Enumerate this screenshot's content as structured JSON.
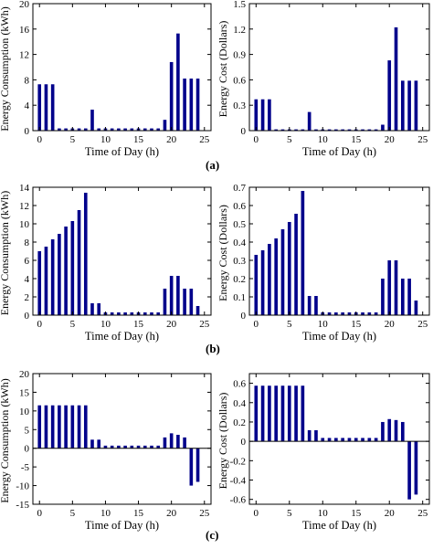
{
  "chart_data": [
    {
      "type": "bar",
      "panel": "a",
      "ylabel": "Energy Consumption (kWh)",
      "xlabel": "Time of Day (h)",
      "ylim": [
        0,
        20
      ],
      "xlim": [
        -1,
        26
      ],
      "yticks": [
        0,
        4,
        8,
        12,
        16,
        20
      ],
      "ytick_labels": [
        "0",
        "4",
        "8",
        "12",
        "16",
        "20"
      ],
      "xticks": [
        0,
        5,
        10,
        15,
        20,
        25
      ],
      "xtick_labels": [
        "0",
        "5",
        "10",
        "15",
        "20",
        "25"
      ],
      "x": [
        0,
        1,
        2,
        3,
        4,
        5,
        6,
        7,
        8,
        9,
        10,
        11,
        12,
        13,
        14,
        15,
        16,
        17,
        18,
        19,
        20,
        21,
        22,
        23,
        24
      ],
      "values": [
        7.3,
        7.3,
        7.3,
        0.35,
        0.35,
        0.35,
        0.35,
        0.35,
        3.3,
        0.35,
        0.35,
        0.35,
        0.35,
        0.35,
        0.35,
        0.35,
        0.35,
        0.35,
        0.35,
        1.7,
        10.8,
        15.3,
        8.2,
        8.2,
        8.2
      ],
      "color": "#00008B"
    },
    {
      "type": "bar",
      "panel": "a",
      "ylabel": "Energy Cost (Dollars)",
      "xlabel": "Time of Day (h)",
      "ylim": [
        0,
        1.5
      ],
      "xlim": [
        -1,
        26
      ],
      "yticks": [
        0,
        0.3,
        0.6,
        0.9,
        1.2,
        1.5
      ],
      "ytick_labels": [
        "0",
        "0.3",
        "0.6",
        "0.9",
        "1.2",
        "1.5"
      ],
      "xticks": [
        0,
        5,
        10,
        15,
        20,
        25
      ],
      "xtick_labels": [
        "0",
        "5",
        "10",
        "15",
        "20",
        "25"
      ],
      "x": [
        0,
        1,
        2,
        3,
        4,
        5,
        6,
        7,
        8,
        9,
        10,
        11,
        12,
        13,
        14,
        15,
        16,
        17,
        18,
        19,
        20,
        21,
        22,
        23,
        24
      ],
      "values": [
        0.37,
        0.37,
        0.37,
        0.015,
        0.015,
        0.015,
        0.015,
        0.015,
        0.22,
        0.015,
        0.015,
        0.015,
        0.015,
        0.015,
        0.015,
        0.015,
        0.015,
        0.015,
        0.015,
        0.07,
        0.83,
        1.22,
        0.59,
        0.59,
        0.59
      ],
      "color": "#00008B"
    },
    {
      "type": "bar",
      "panel": "b",
      "ylabel": "Energy Consumption (kWh)",
      "xlabel": "Time of Day (h)",
      "ylim": [
        0,
        14
      ],
      "xlim": [
        -1,
        26
      ],
      "yticks": [
        0,
        2,
        4,
        6,
        8,
        10,
        12,
        14
      ],
      "ytick_labels": [
        "0",
        "2",
        "4",
        "6",
        "8",
        "10",
        "12",
        "14"
      ],
      "xticks": [
        0,
        5,
        10,
        15,
        20,
        25
      ],
      "xtick_labels": [
        "0",
        "5",
        "10",
        "15",
        "20",
        "25"
      ],
      "x": [
        0,
        1,
        2,
        3,
        4,
        5,
        6,
        7,
        8,
        9,
        10,
        11,
        12,
        13,
        14,
        15,
        16,
        17,
        18,
        19,
        20,
        21,
        22,
        23,
        24
      ],
      "values": [
        7.0,
        7.5,
        8.3,
        8.9,
        9.7,
        10.3,
        11.5,
        13.4,
        1.3,
        1.3,
        0.3,
        0.3,
        0.3,
        0.3,
        0.3,
        0.3,
        0.3,
        0.3,
        0.3,
        2.9,
        4.3,
        4.3,
        2.9,
        2.9,
        1.0
      ],
      "color": "#00008B"
    },
    {
      "type": "bar",
      "panel": "b",
      "ylabel": "Energy Cost (Dollars)",
      "xlabel": "Time of Day (h)",
      "ylim": [
        0,
        0.7
      ],
      "xlim": [
        -1,
        26
      ],
      "yticks": [
        0,
        0.1,
        0.2,
        0.3,
        0.4,
        0.5,
        0.6,
        0.7
      ],
      "ytick_labels": [
        "0",
        "0.1",
        "0.2",
        "0.3",
        "0.4",
        "0.5",
        "0.6",
        "0.7"
      ],
      "xticks": [
        0,
        5,
        10,
        15,
        20,
        25
      ],
      "xtick_labels": [
        "0",
        "5",
        "10",
        "15",
        "20",
        "25"
      ],
      "x": [
        0,
        1,
        2,
        3,
        4,
        5,
        6,
        7,
        8,
        9,
        10,
        11,
        12,
        13,
        14,
        15,
        16,
        17,
        18,
        19,
        20,
        21,
        22,
        23,
        24
      ],
      "values": [
        0.33,
        0.355,
        0.39,
        0.42,
        0.47,
        0.51,
        0.555,
        0.68,
        0.105,
        0.105,
        0.015,
        0.015,
        0.015,
        0.015,
        0.015,
        0.015,
        0.015,
        0.015,
        0.015,
        0.2,
        0.3,
        0.3,
        0.2,
        0.2,
        0.08
      ],
      "color": "#00008B"
    },
    {
      "type": "bar",
      "panel": "c",
      "ylabel": "Energy Consumption (kWh)",
      "xlabel": "Time of Day (h)",
      "ylim": [
        -15,
        20
      ],
      "xlim": [
        -1,
        26
      ],
      "yticks": [
        -15,
        -10,
        -5,
        0,
        5,
        10,
        15,
        20
      ],
      "ytick_labels": [
        "-15",
        "-10",
        "-5",
        "0",
        "5",
        "10",
        "15",
        "20"
      ],
      "xticks": [
        0,
        5,
        10,
        15,
        20,
        25
      ],
      "xtick_labels": [
        "0",
        "5",
        "10",
        "15",
        "20",
        "25"
      ],
      "x": [
        0,
        1,
        2,
        3,
        4,
        5,
        6,
        7,
        8,
        9,
        10,
        11,
        12,
        13,
        14,
        15,
        16,
        17,
        18,
        19,
        20,
        21,
        22,
        23,
        24
      ],
      "values": [
        11.5,
        11.5,
        11.5,
        11.5,
        11.5,
        11.5,
        11.5,
        11.5,
        2.3,
        2.3,
        0.7,
        0.7,
        0.7,
        0.7,
        0.7,
        0.7,
        0.7,
        0.7,
        0.7,
        2.9,
        4.0,
        3.6,
        2.9,
        -10.0,
        -9.0
      ],
      "color": "#00008B"
    },
    {
      "type": "bar",
      "panel": "c",
      "ylabel": "Energy Cost (Dollars)",
      "xlabel": "Time of Day (h)",
      "ylim": [
        -0.65,
        0.7
      ],
      "xlim": [
        -1,
        26
      ],
      "yticks": [
        -0.6,
        -0.4,
        -0.2,
        0,
        0.2,
        0.4,
        0.6
      ],
      "ytick_labels": [
        "-0.6",
        "-0.4",
        "-0.2",
        "0",
        "0.2",
        "0.4",
        "0.6"
      ],
      "xticks": [
        0,
        5,
        10,
        15,
        20,
        25
      ],
      "xtick_labels": [
        "0",
        "5",
        "10",
        "15",
        "20",
        "25"
      ],
      "x": [
        0,
        1,
        2,
        3,
        4,
        5,
        6,
        7,
        8,
        9,
        10,
        11,
        12,
        13,
        14,
        15,
        16,
        17,
        18,
        19,
        20,
        21,
        22,
        23,
        24
      ],
      "values": [
        0.575,
        0.575,
        0.575,
        0.575,
        0.575,
        0.575,
        0.575,
        0.575,
        0.115,
        0.115,
        0.035,
        0.035,
        0.035,
        0.035,
        0.035,
        0.035,
        0.035,
        0.035,
        0.035,
        0.2,
        0.23,
        0.22,
        0.2,
        -0.6,
        -0.55
      ],
      "color": "#00008B"
    }
  ],
  "panel_labels": {
    "a": "(a)",
    "b": "(b)",
    "c": "(c)"
  }
}
